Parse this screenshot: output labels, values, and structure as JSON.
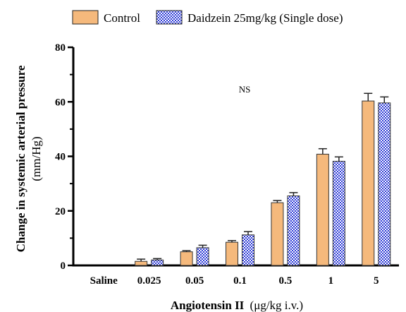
{
  "chart_data": {
    "type": "bar",
    "categories": [
      "Saline",
      "0.025",
      "0.05",
      "0.1",
      "0.5",
      "1",
      "5"
    ],
    "series": [
      {
        "name": "Control",
        "values": [
          0,
          1.5,
          5.0,
          8.5,
          23.0,
          40.8,
          60.3
        ],
        "errors": [
          0,
          0.8,
          0.4,
          0.6,
          0.8,
          2.0,
          2.8
        ],
        "color": "#f5b97c",
        "pattern": "solid"
      },
      {
        "name": "Daidzein 25mg/kg (Single dose)",
        "values": [
          0,
          2.0,
          6.5,
          11.2,
          25.5,
          38.2,
          59.6
        ],
        "errors": [
          0,
          0.5,
          0.9,
          1.2,
          1.2,
          1.6,
          2.2
        ],
        "color": "#3344dd",
        "pattern": "checker"
      }
    ],
    "ylim": [
      0,
      80
    ],
    "yticks": [
      "0",
      "20",
      "40",
      "60",
      "80"
    ],
    "ylabel_bold": "Change in systemic arterial pressure",
    "ylabel_unit": "(mm/Hg)",
    "xlabel_bold": "Angiotensin II",
    "xlabel_unit": "(μg/kg i.v.)",
    "annotation": "NS",
    "legend_position": "top"
  }
}
